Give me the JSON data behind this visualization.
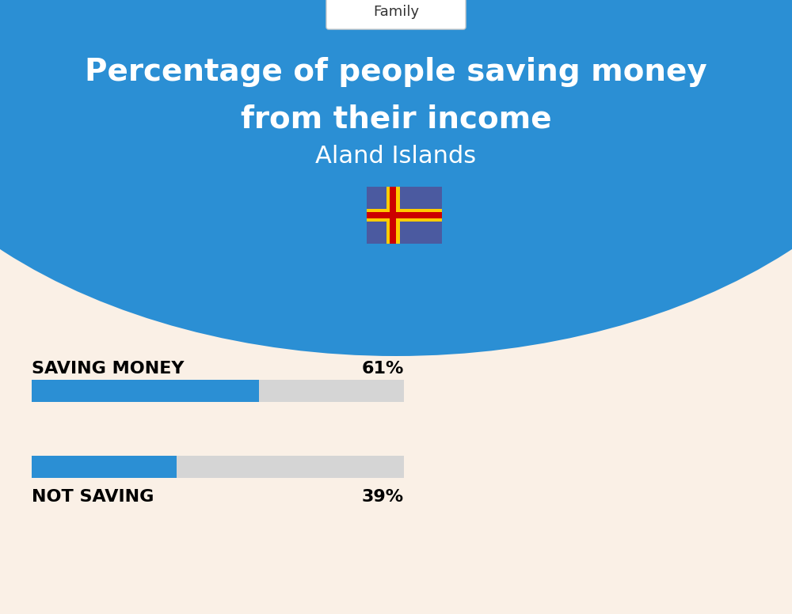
{
  "title_line1": "Percentage of people saving money",
  "title_line2": "from their income",
  "subtitle": "Aland Islands",
  "category_label": "Family",
  "bg_color": "#FAF0E6",
  "header_bg_color": "#2B8FD4",
  "bar_blue": "#2B8FD4",
  "bar_gray": "#D5D5D5",
  "bar1_label": "SAVING MONEY",
  "bar1_value": 61,
  "bar1_pct": "61%",
  "bar2_label": "NOT SAVING",
  "bar2_value": 39,
  "bar2_pct": "39%",
  "label_color": "#000000",
  "title_color": "#FFFFFF",
  "tag_color": "#333333",
  "tag_bg": "#FFFFFF",
  "flag_bg": "#4B5AA0",
  "flag_yellow": "#FFCC00",
  "flag_red": "#CC0000"
}
